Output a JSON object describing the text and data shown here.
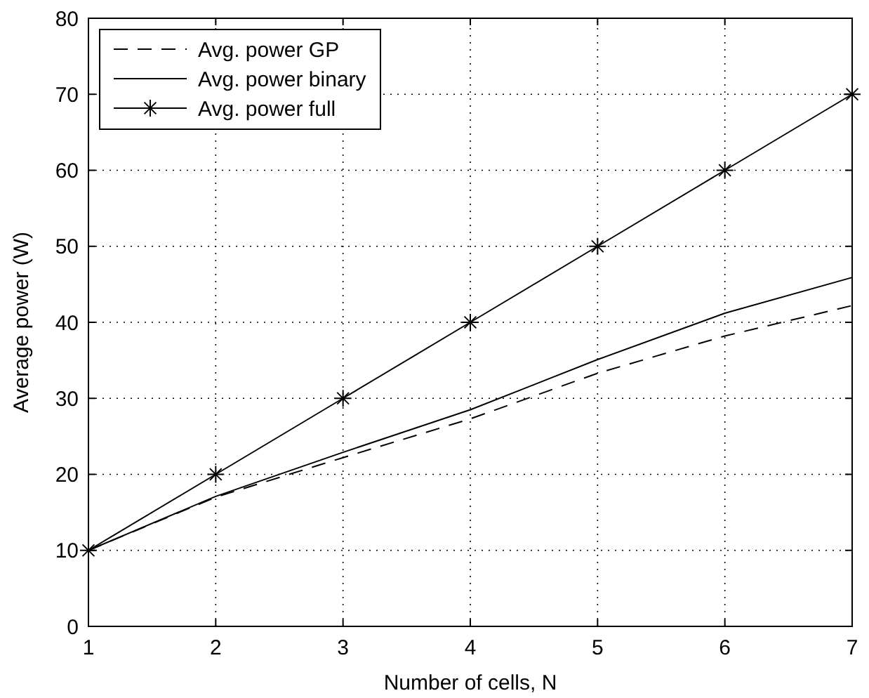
{
  "chart_data": {
    "type": "line",
    "xlabel": "Number of cells, N",
    "ylabel": "Average power (W)",
    "x": [
      1,
      2,
      3,
      4,
      5,
      6,
      7
    ],
    "xlim": [
      1,
      7
    ],
    "xticks": [
      1,
      2,
      3,
      4,
      5,
      6,
      7
    ],
    "ylim": [
      0,
      80
    ],
    "yticks": [
      0,
      10,
      20,
      30,
      40,
      50,
      60,
      70,
      80
    ],
    "grid": true,
    "legend": "top left",
    "series": [
      {
        "name": "Avg. power GP",
        "color": "#000000",
        "line_style": "dashed",
        "marker": "none",
        "values": [
          10,
          17,
          22.2,
          27.3,
          33.3,
          38.2,
          42.2
        ]
      },
      {
        "name": "Avg. power binary",
        "color": "#000000",
        "line_style": "solid",
        "marker": "none",
        "values": [
          10,
          17.1,
          22.9,
          28.5,
          35.1,
          41.2,
          45.9
        ]
      },
      {
        "name": "Avg. power full",
        "color": "#000000",
        "line_style": "solid",
        "marker": "cross",
        "values": [
          10,
          20,
          30,
          40,
          50,
          60,
          70
        ]
      }
    ]
  }
}
